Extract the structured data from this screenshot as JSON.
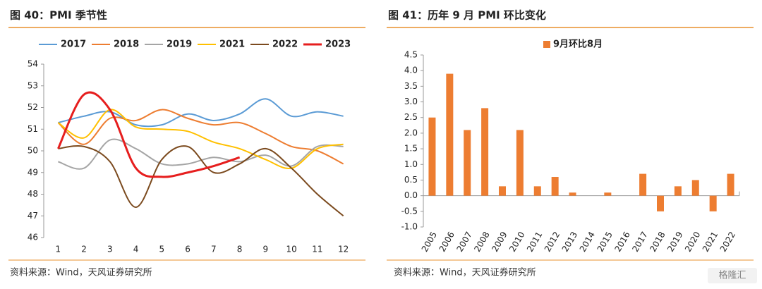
{
  "chart_data": [
    {
      "type": "line",
      "title": "图 40：PMI 季节性",
      "categories": [
        "1",
        "2",
        "3",
        "4",
        "5",
        "6",
        "7",
        "8",
        "9",
        "10",
        "11",
        "12"
      ],
      "series": [
        {
          "name": "2017",
          "color": "#5b9bd5",
          "values": [
            51.3,
            51.6,
            51.8,
            51.2,
            51.2,
            51.7,
            51.4,
            51.7,
            52.4,
            51.6,
            51.8,
            51.6
          ]
        },
        {
          "name": "2018",
          "color": "#ed7d31",
          "values": [
            51.3,
            50.3,
            51.5,
            51.4,
            51.9,
            51.5,
            51.2,
            51.3,
            50.8,
            50.2,
            50.0,
            49.4
          ]
        },
        {
          "name": "2019",
          "color": "#a5a5a5",
          "values": [
            49.5,
            49.2,
            50.5,
            50.1,
            49.4,
            49.4,
            49.7,
            49.5,
            49.8,
            49.3,
            50.2,
            50.2
          ]
        },
        {
          "name": "2021",
          "color": "#ffc000",
          "values": [
            51.3,
            50.6,
            51.9,
            51.1,
            51.0,
            50.9,
            50.4,
            50.1,
            49.6,
            49.2,
            50.1,
            50.3
          ]
        },
        {
          "name": "2022",
          "color": "#7b4a1e",
          "values": [
            50.1,
            50.2,
            49.5,
            47.4,
            49.6,
            50.2,
            49.0,
            49.4,
            50.1,
            49.2,
            48.0,
            47.0
          ]
        },
        {
          "name": "2023",
          "color": "#e61e1e",
          "values": [
            50.1,
            52.6,
            51.9,
            49.2,
            48.8,
            49.0,
            49.3,
            49.7,
            null,
            null,
            null,
            null
          ]
        }
      ],
      "ylim": [
        46,
        54
      ],
      "yticks": [
        46,
        47,
        48,
        49,
        50,
        51,
        52,
        53,
        54
      ],
      "legend": "top",
      "source": "资料来源：Wind，天风证券研究所"
    },
    {
      "type": "bar",
      "title": "图 41：历年 9 月 PMI 环比变化",
      "categories": [
        "2005",
        "2006",
        "2007",
        "2008",
        "2009",
        "2010",
        "2011",
        "2012",
        "2013",
        "2014",
        "2015",
        "2016",
        "2017",
        "2018",
        "2019",
        "2020",
        "2021",
        "2022"
      ],
      "series": [
        {
          "name": "9月环比8月",
          "color": "#ed7d31",
          "values": [
            2.5,
            3.9,
            2.1,
            2.8,
            0.3,
            2.1,
            0.3,
            0.6,
            0.1,
            0,
            0.1,
            0,
            0.7,
            -0.5,
            0.3,
            0.5,
            -0.5,
            0.7
          ]
        }
      ],
      "ylim": [
        -1,
        4.5
      ],
      "yticks": [
        {
          "value": -1,
          "label": "-1.0"
        },
        -0.5,
        {
          "value": 0,
          "label": "0.0"
        },
        0.5,
        {
          "value": 1,
          "label": "1.0"
        },
        1.5,
        {
          "value": 2,
          "label": "2.0"
        },
        2.5,
        {
          "value": 3,
          "label": "3.0"
        },
        3.5,
        {
          "value": 4,
          "label": "4.0"
        },
        4.5
      ],
      "legend": "top",
      "source": "资料来源：Wind，天风证券研究所"
    }
  ],
  "watermark": "格隆汇"
}
